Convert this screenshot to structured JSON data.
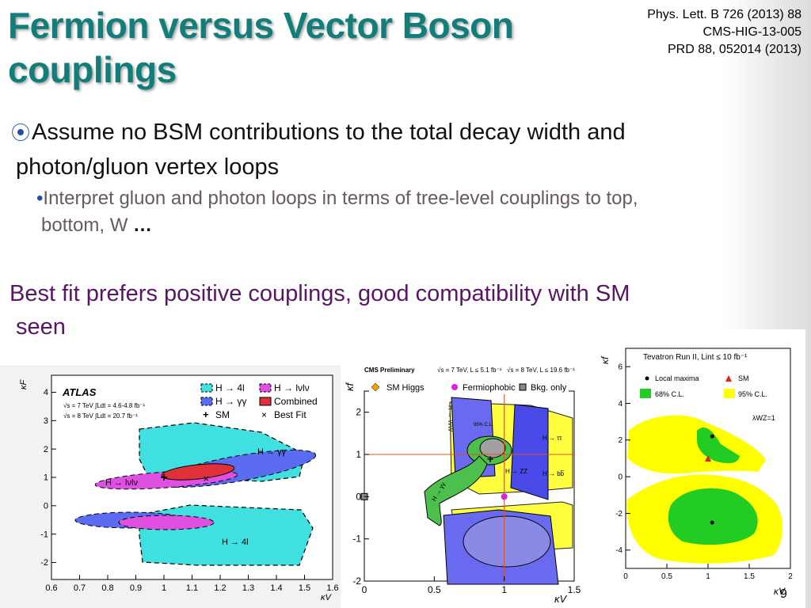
{
  "slide": {
    "title_line1": "Fermion versus Vector Boson",
    "title_line2": "couplings",
    "refs": [
      "Phys. Lett. B 726 (2013) 88",
      "CMS-HIG-13-005",
      "PRD 88, 052014 (2013)"
    ],
    "bullet1_line1": "Assume no BSM contributions to the total decay width and",
    "bullet1_line2": "photon/gluon vertex loops",
    "bullet2_line1": "Interpret gluon and photon loops in terms of tree-level couplings to top,",
    "bullet2_line2": "bottom, W",
    "bullet2_ellipsis": "…",
    "bestfit_line1": "Best fit prefers positive couplings, good compatibility with SM",
    "bestfit_line2": "seen",
    "page_number": "9",
    "colors": {
      "title": "#137d7a",
      "best_fit_text": "#5a1566",
      "bullet_mark": "#1f4f9e"
    }
  },
  "chart_data": [
    {
      "type": "scatter",
      "panel": "atlas",
      "title": "ATLAS",
      "xlabel": "κV",
      "ylabel": "κF",
      "xlim": [
        0.6,
        1.6
      ],
      "ylim": [
        -2.6,
        4.6
      ],
      "xticks": [
        "0.6",
        "0.7",
        "0.8",
        "0.9",
        "1",
        "1.1",
        "1.2",
        "1.3",
        "1.4",
        "1.5",
        "1.6"
      ],
      "yticks": [
        "-2",
        "-1",
        "0",
        "1",
        "2",
        "3",
        "4"
      ],
      "annotations": [
        "√s = 7 TeV ∫Ldt = 4.6-4.8 fb⁻¹",
        "√s = 8 TeV ∫Ldt = 20.7 fb⁻¹"
      ],
      "legend": [
        "H → 4l",
        "H → lνlν",
        "H → γγ",
        "Combined",
        "SM",
        "Best Fit"
      ],
      "region_labels": [
        "H → γγ",
        "H → lνlν",
        "H → 4l"
      ],
      "points": [
        {
          "name": "SM",
          "x": 1.0,
          "y": 1.0
        },
        {
          "name": "Best Fit",
          "x": 1.15,
          "y": 0.95
        }
      ]
    },
    {
      "type": "scatter",
      "panel": "cms",
      "title": "CMS Preliminary",
      "subtitle": [
        "√s = 7 TeV, L ≤ 5.1 fb⁻¹",
        "√s = 8 TeV, L ≤ 19.6 fb⁻¹"
      ],
      "xlabel": "κV",
      "ylabel": "κf",
      "xlim": [
        0,
        1.5
      ],
      "ylim": [
        -2,
        2.5
      ],
      "xticks": [
        "0",
        "0.5",
        "1",
        "1.5"
      ],
      "yticks": [
        "-2",
        "-1",
        "0",
        "1",
        "2"
      ],
      "legend": [
        "SM Higgs",
        "Fermiophobic",
        "Bkg. only"
      ],
      "region_labels": [
        "H → WW",
        "H → γγ",
        "H → ττ",
        "H → ZZ",
        "H → bb̅",
        "95% C.L."
      ],
      "points": [
        {
          "name": "SM Higgs",
          "x": 1.0,
          "y": 1.0
        },
        {
          "name": "Fermiophobic",
          "x": 1.0,
          "y": 0.0
        },
        {
          "name": "Bkg. only",
          "x": 0.0,
          "y": 0.0
        },
        {
          "name": "Best fit",
          "x": 0.9,
          "y": 0.9
        }
      ]
    },
    {
      "type": "scatter",
      "panel": "tevatron",
      "title": "Tevatron Run II, Lint ≤ 10 fb⁻¹",
      "xlabel": "κV",
      "ylabel": "κf",
      "xlim": [
        0,
        2
      ],
      "ylim": [
        -5,
        7
      ],
      "xticks": [
        "0",
        "0.5",
        "1",
        "1.5",
        "2"
      ],
      "yticks": [
        "-4",
        "-2",
        "0",
        "2",
        "4",
        "6"
      ],
      "legend": [
        "Local maxima",
        "SM",
        "68% C.L.",
        "95% C.L."
      ],
      "annotation": "λWZ=1",
      "points": [
        {
          "name": "Local maxima",
          "x": 1.05,
          "y": 2.2
        },
        {
          "name": "Local maxima",
          "x": 1.05,
          "y": -2.5
        },
        {
          "name": "SM",
          "x": 1.0,
          "y": 1.0
        }
      ]
    }
  ]
}
